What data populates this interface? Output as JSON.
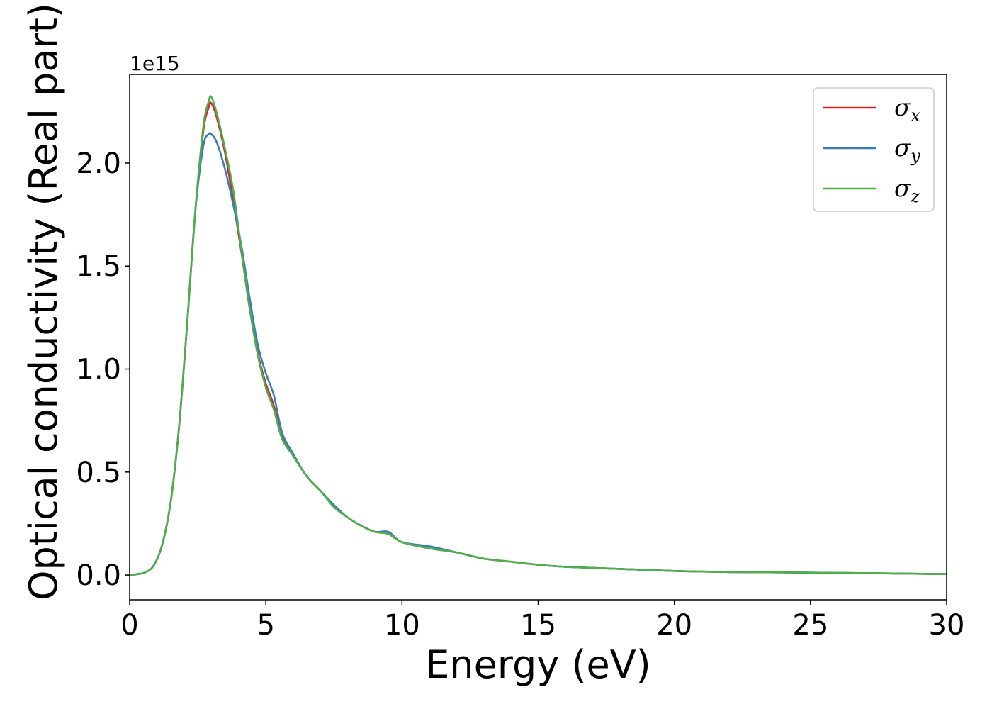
{
  "chart_data": {
    "type": "line",
    "xlabel": "Energy (eV)",
    "ylabel": "Optical conductivity (Real part)",
    "y_offset_label": "1e15",
    "xlim": [
      0,
      30
    ],
    "ylim": [
      -0.12,
      2.43
    ],
    "xticks": [
      0,
      5,
      10,
      15,
      20,
      25,
      30
    ],
    "xtick_labels": [
      "0",
      "5",
      "10",
      "15",
      "20",
      "25",
      "30"
    ],
    "yticks": [
      0.0,
      0.5,
      1.0,
      1.5,
      2.0
    ],
    "ytick_labels": [
      "0.0",
      "0.5",
      "1.0",
      "1.5",
      "2.0"
    ],
    "grid": false,
    "legend_position": "top-right",
    "series": [
      {
        "name": "σx",
        "label_base": "σ",
        "label_sub": "x",
        "color": "#d62728",
        "x": [
          0,
          0.3,
          0.6,
          0.9,
          1.2,
          1.5,
          1.8,
          2.1,
          2.4,
          2.7,
          2.9,
          3.0,
          3.2,
          3.5,
          3.8,
          4.1,
          4.4,
          4.7,
          5.0,
          5.3,
          5.6,
          6.0,
          6.5,
          7.0,
          7.5,
          8.0,
          8.5,
          9.0,
          9.5,
          10.0,
          11.0,
          12.0,
          13.0,
          14.0,
          15.0,
          16.0,
          18.0,
          20.0,
          22.0,
          25.0,
          28.0,
          30.0
        ],
        "y": [
          0.0,
          0.005,
          0.015,
          0.05,
          0.15,
          0.35,
          0.7,
          1.2,
          1.75,
          2.15,
          2.27,
          2.29,
          2.22,
          2.05,
          1.82,
          1.57,
          1.3,
          1.08,
          0.93,
          0.82,
          0.67,
          0.58,
          0.48,
          0.41,
          0.34,
          0.28,
          0.24,
          0.21,
          0.2,
          0.16,
          0.13,
          0.11,
          0.08,
          0.065,
          0.05,
          0.04,
          0.03,
          0.02,
          0.015,
          0.012,
          0.008,
          0.005
        ]
      },
      {
        "name": "σy",
        "label_base": "σ",
        "label_sub": "y",
        "color": "#377eb8",
        "x": [
          0,
          0.3,
          0.6,
          0.9,
          1.2,
          1.5,
          1.8,
          2.1,
          2.4,
          2.7,
          2.9,
          3.0,
          3.2,
          3.5,
          3.8,
          4.1,
          4.4,
          4.7,
          5.0,
          5.3,
          5.6,
          6.0,
          6.5,
          7.0,
          7.5,
          8.0,
          8.5,
          9.0,
          9.5,
          10.0,
          11.0,
          12.0,
          13.0,
          14.0,
          15.0,
          16.0,
          18.0,
          20.0,
          22.0,
          25.0,
          28.0,
          30.0
        ],
        "y": [
          0.0,
          0.005,
          0.015,
          0.05,
          0.15,
          0.35,
          0.7,
          1.2,
          1.75,
          2.08,
          2.14,
          2.14,
          2.1,
          1.97,
          1.8,
          1.6,
          1.35,
          1.12,
          0.98,
          0.87,
          0.69,
          0.59,
          0.48,
          0.41,
          0.34,
          0.28,
          0.24,
          0.21,
          0.21,
          0.16,
          0.14,
          0.11,
          0.08,
          0.065,
          0.05,
          0.04,
          0.03,
          0.02,
          0.015,
          0.012,
          0.008,
          0.005
        ]
      },
      {
        "name": "σz",
        "label_base": "σ",
        "label_sub": "z",
        "color": "#4daf4a",
        "x": [
          0,
          0.3,
          0.6,
          0.9,
          1.2,
          1.5,
          1.8,
          2.1,
          2.4,
          2.7,
          2.9,
          3.0,
          3.2,
          3.5,
          3.8,
          4.1,
          4.4,
          4.7,
          5.0,
          5.3,
          5.6,
          6.0,
          6.5,
          7.0,
          7.5,
          8.0,
          8.5,
          9.0,
          9.5,
          10.0,
          11.0,
          12.0,
          13.0,
          14.0,
          15.0,
          16.0,
          18.0,
          20.0,
          22.0,
          25.0,
          28.0,
          30.0
        ],
        "y": [
          0.0,
          0.005,
          0.015,
          0.05,
          0.15,
          0.35,
          0.7,
          1.2,
          1.75,
          2.17,
          2.3,
          2.32,
          2.24,
          2.07,
          1.87,
          1.58,
          1.3,
          1.07,
          0.91,
          0.8,
          0.66,
          0.58,
          0.48,
          0.41,
          0.33,
          0.28,
          0.24,
          0.21,
          0.2,
          0.16,
          0.13,
          0.11,
          0.08,
          0.065,
          0.05,
          0.04,
          0.03,
          0.02,
          0.015,
          0.012,
          0.008,
          0.005
        ]
      }
    ]
  }
}
